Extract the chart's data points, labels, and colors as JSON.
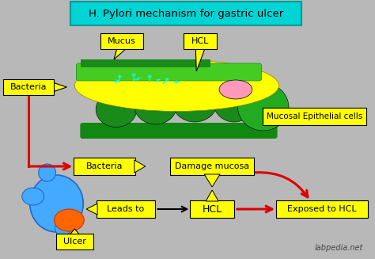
{
  "title": "H. Pylori mechanism for gastric ulcer",
  "title_bg": "#00d4d4",
  "title_edge": "#009999",
  "bg_color": "#b8b8b8",
  "yellow": "#ffff00",
  "yellow_edge": "#999900",
  "green_dark": "#1a8a1a",
  "green_mid": "#22aa22",
  "green_light": "#44cc22",
  "green_base": "#118811",
  "cyan_bact": "#00ffff",
  "red_arrow": "#dd0000",
  "pink": "#ff99bb",
  "blue_ulcer": "#44aaff",
  "blue_ulcer_dark": "#2266cc",
  "orange_ulcer": "#ff6600",
  "watermark": "labpedia.net",
  "labels": {
    "mucus": "Mucus",
    "hcl_top": "HCL",
    "bacteria_top": "Bacteria",
    "mucosal": "Mucosal Epithelial cells",
    "bacteria_mid": "Bacteria",
    "damage": "Damage mucosa",
    "leads_to": "Leads to",
    "hcl_mid": "HCL",
    "exposed": "Exposed to HCL",
    "ulcer": "Ulcer"
  }
}
